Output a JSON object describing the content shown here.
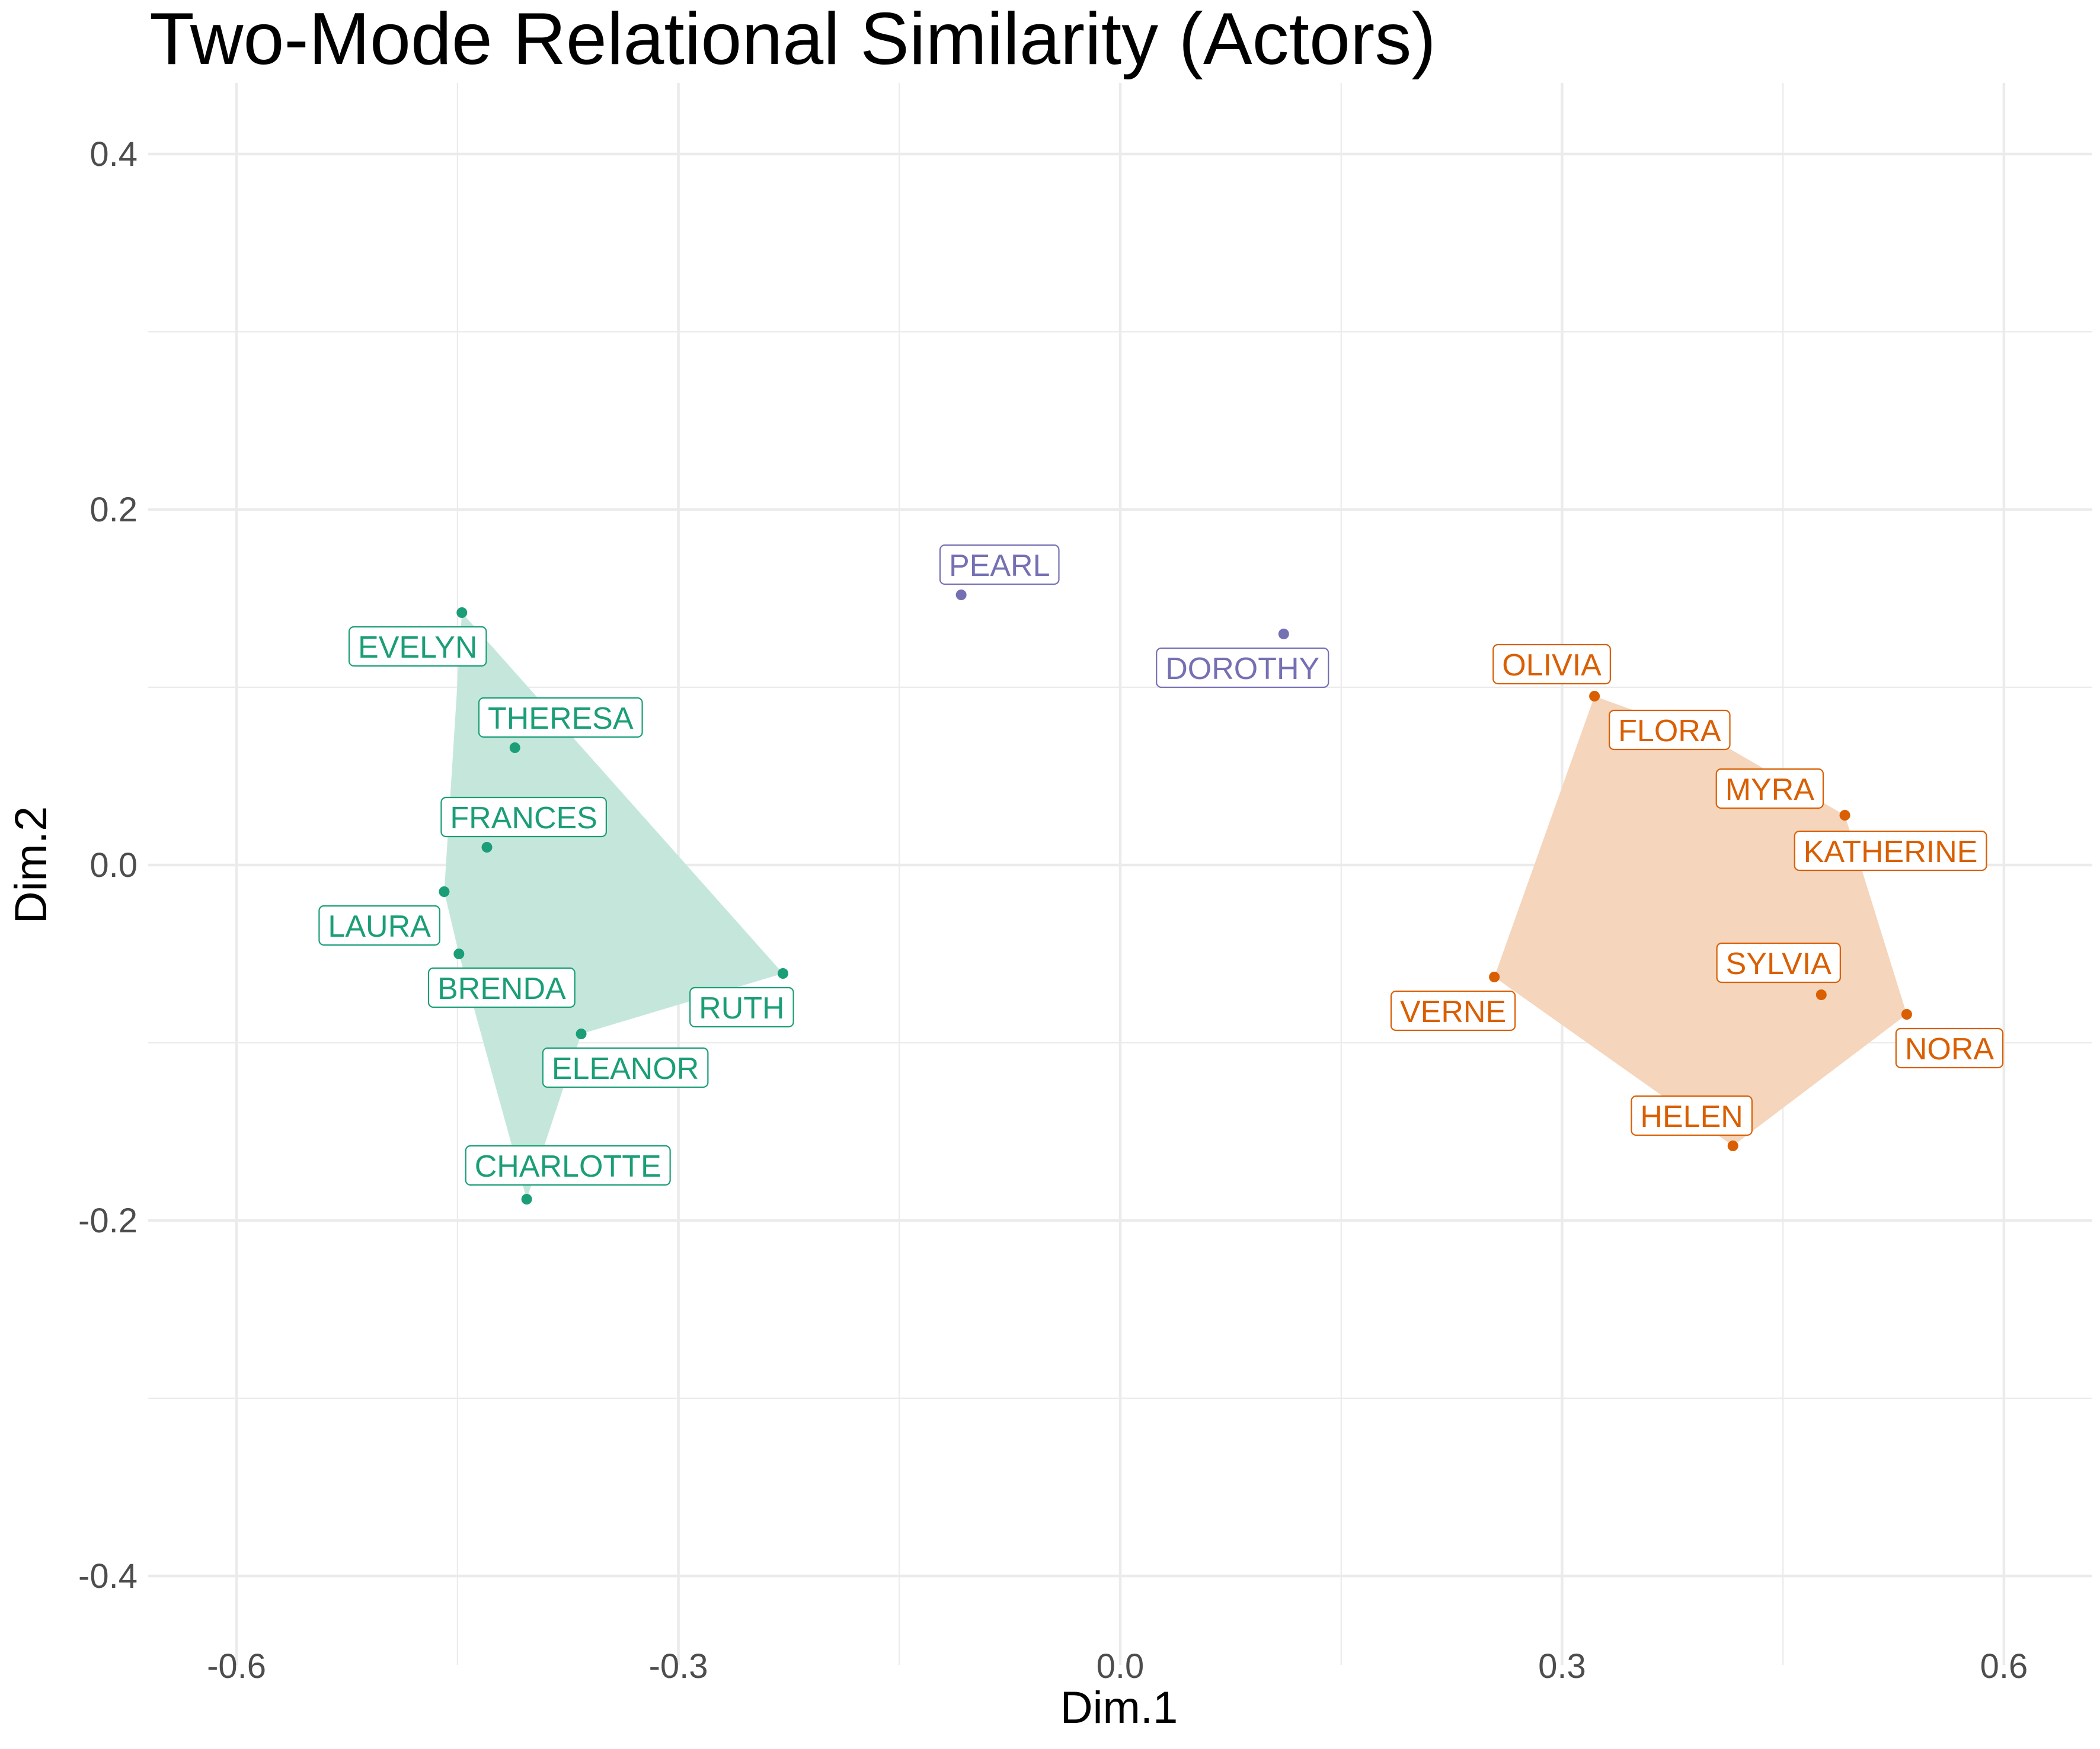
{
  "chart_data": {
    "type": "scatter",
    "title": "Two-Mode Relational Similarity (Actors)",
    "xlabel": "Dim.1",
    "ylabel": "Dim.2",
    "xlim": [
      -0.66,
      0.66
    ],
    "ylim": [
      -0.45,
      0.44
    ],
    "x_ticks": [
      {
        "value": -0.6,
        "label": "-0.6"
      },
      {
        "value": -0.3,
        "label": "-0.3"
      },
      {
        "value": 0.0,
        "label": "0.0"
      },
      {
        "value": 0.3,
        "label": "0.3"
      },
      {
        "value": 0.6,
        "label": "0.6"
      }
    ],
    "y_ticks": [
      {
        "value": 0.4,
        "label": "0.4"
      },
      {
        "value": 0.2,
        "label": "0.2"
      },
      {
        "value": 0.0,
        "label": "0.0"
      },
      {
        "value": -0.2,
        "label": "-0.2"
      },
      {
        "value": -0.4,
        "label": "-0.4"
      }
    ],
    "x_minor": [
      -0.45,
      -0.15,
      0.15,
      0.45
    ],
    "y_minor": [
      0.3,
      0.1,
      -0.1,
      -0.3
    ],
    "grid": true,
    "groups": [
      {
        "color": "#1b9e77",
        "fill": "#c5e7db",
        "hull": [
          "EVELYN",
          "RUTH",
          "ELEANOR",
          "CHARLOTTE",
          "BRENDA",
          "LAURA"
        ],
        "points": [
          {
            "name": "EVELYN",
            "x": -0.447,
            "y": 0.142,
            "label_x": -0.477,
            "label_y": 0.123
          },
          {
            "name": "THERESA",
            "x": -0.411,
            "y": 0.066,
            "label_x": -0.38,
            "label_y": 0.083
          },
          {
            "name": "FRANCES",
            "x": -0.43,
            "y": 0.01,
            "label_x": -0.405,
            "label_y": 0.027
          },
          {
            "name": "LAURA",
            "x": -0.459,
            "y": -0.015,
            "label_x": -0.503,
            "label_y": -0.034
          },
          {
            "name": "BRENDA",
            "x": -0.449,
            "y": -0.05,
            "label_x": -0.42,
            "label_y": -0.069
          },
          {
            "name": "RUTH",
            "x": -0.229,
            "y": -0.061,
            "label_x": -0.257,
            "label_y": -0.08
          },
          {
            "name": "ELEANOR",
            "x": -0.366,
            "y": -0.095,
            "label_x": -0.336,
            "label_y": -0.114
          },
          {
            "name": "CHARLOTTE",
            "x": -0.403,
            "y": -0.188,
            "label_x": -0.375,
            "label_y": -0.169
          }
        ]
      },
      {
        "color": "#7570b3",
        "fill": "none",
        "hull": [],
        "points": [
          {
            "name": "PEARL",
            "x": -0.108,
            "y": 0.152,
            "label_x": -0.082,
            "label_y": 0.169
          },
          {
            "name": "DOROTHY",
            "x": 0.111,
            "y": 0.13,
            "label_x": 0.083,
            "label_y": 0.111
          }
        ]
      },
      {
        "color": "#d95f02",
        "fill": "#f5d5bc",
        "hull": [
          "OLIVIA",
          "FLORA",
          "KATHERINE",
          "NORA",
          "HELEN",
          "VERNE"
        ],
        "points": [
          {
            "name": "OLIVIA",
            "x": 0.322,
            "y": 0.095,
            "label_x": 0.293,
            "label_y": 0.113
          },
          {
            "name": "FLORA",
            "x": 0.402,
            "y": 0.071,
            "label_x": 0.373,
            "label_y": 0.076
          },
          {
            "name": "MYRA",
            "x": 0.402,
            "y": 0.071,
            "label_x": 0.441,
            "label_y": 0.043
          },
          {
            "name": "KATHERINE",
            "x": 0.492,
            "y": 0.028,
            "label_x": 0.523,
            "label_y": 0.008
          },
          {
            "name": "SYLVIA",
            "x": 0.476,
            "y": -0.073,
            "label_x": 0.447,
            "label_y": -0.055
          },
          {
            "name": "NORA",
            "x": 0.534,
            "y": -0.084,
            "label_x": 0.563,
            "label_y": -0.103
          },
          {
            "name": "VERNE",
            "x": 0.254,
            "y": -0.063,
            "label_x": 0.226,
            "label_y": -0.082
          },
          {
            "name": "HELEN",
            "x": 0.416,
            "y": -0.158,
            "label_x": 0.388,
            "label_y": -140
          }
        ]
      }
    ]
  }
}
